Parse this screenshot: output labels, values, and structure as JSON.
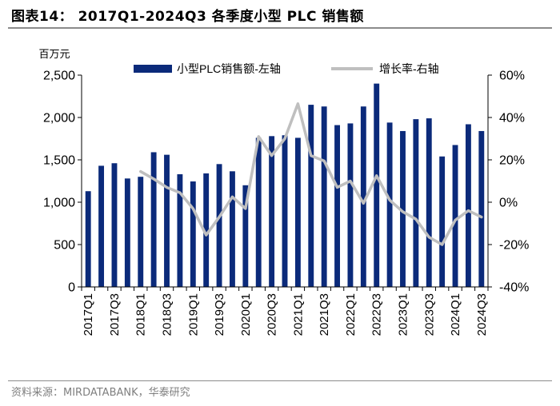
{
  "figure": {
    "title": "图表14：  2017Q1-2024Q3 各季度小型 PLC 销售额",
    "source": "资料来源：MIRDATABANK，华泰研究"
  },
  "chart_data": {
    "type": "bar+line",
    "unit_label": "百万元",
    "categories": [
      "2017Q1",
      "2017Q2",
      "2017Q3",
      "2017Q4",
      "2018Q1",
      "2018Q2",
      "2018Q3",
      "2018Q4",
      "2019Q1",
      "2019Q2",
      "2019Q3",
      "2019Q4",
      "2020Q1",
      "2020Q2",
      "2020Q3",
      "2020Q4",
      "2021Q1",
      "2021Q2",
      "2021Q3",
      "2021Q4",
      "2022Q1",
      "2022Q2",
      "2022Q3",
      "2022Q4",
      "2023Q1",
      "2023Q2",
      "2023Q3",
      "2023Q4",
      "2024Q1",
      "2024Q2",
      "2024Q3"
    ],
    "tick_labels": [
      "2017Q1",
      "2017Q3",
      "2018Q1",
      "2018Q3",
      "2019Q1",
      "2019Q3",
      "2020Q1",
      "2020Q3",
      "2021Q1",
      "2021Q3",
      "2022Q1",
      "2022Q3",
      "2023Q1",
      "2023Q3",
      "2024Q1",
      "2024Q3"
    ],
    "series": [
      {
        "name": "小型PLC销售额-左轴",
        "kind": "bar",
        "axis": "left",
        "color": "#0b2a7a",
        "values": [
          1130,
          1430,
          1460,
          1280,
          1300,
          1590,
          1560,
          1330,
          1245,
          1340,
          1450,
          1365,
          1200,
          1760,
          1780,
          1790,
          1760,
          2150,
          2130,
          1910,
          1930,
          2130,
          2400,
          1940,
          1840,
          1980,
          1990,
          1540,
          1675,
          1920,
          1840
        ]
      },
      {
        "name": "增长率-右轴",
        "kind": "line",
        "axis": "right",
        "color": "#bfbfbf",
        "values": [
          null,
          null,
          null,
          null,
          14.5,
          11,
          7,
          4.5,
          -3,
          -15.5,
          -7,
          2.5,
          -3,
          31,
          22,
          30,
          46.5,
          22,
          19.5,
          7,
          10,
          -0.5,
          12.5,
          1,
          -4.5,
          -8,
          -16.5,
          -20,
          -8.5,
          -4,
          -7
        ]
      }
    ],
    "y_left": {
      "min": 0,
      "max": 2500,
      "step": 500,
      "ticks": [
        "0",
        "500",
        "1,000",
        "1,500",
        "2,000",
        "2,500"
      ]
    },
    "y_right": {
      "min": -40,
      "max": 60,
      "step": 20,
      "ticks": [
        "-40%",
        "-20%",
        "0%",
        "20%",
        "40%",
        "60%"
      ]
    },
    "grid": false,
    "legend": "top-center"
  }
}
